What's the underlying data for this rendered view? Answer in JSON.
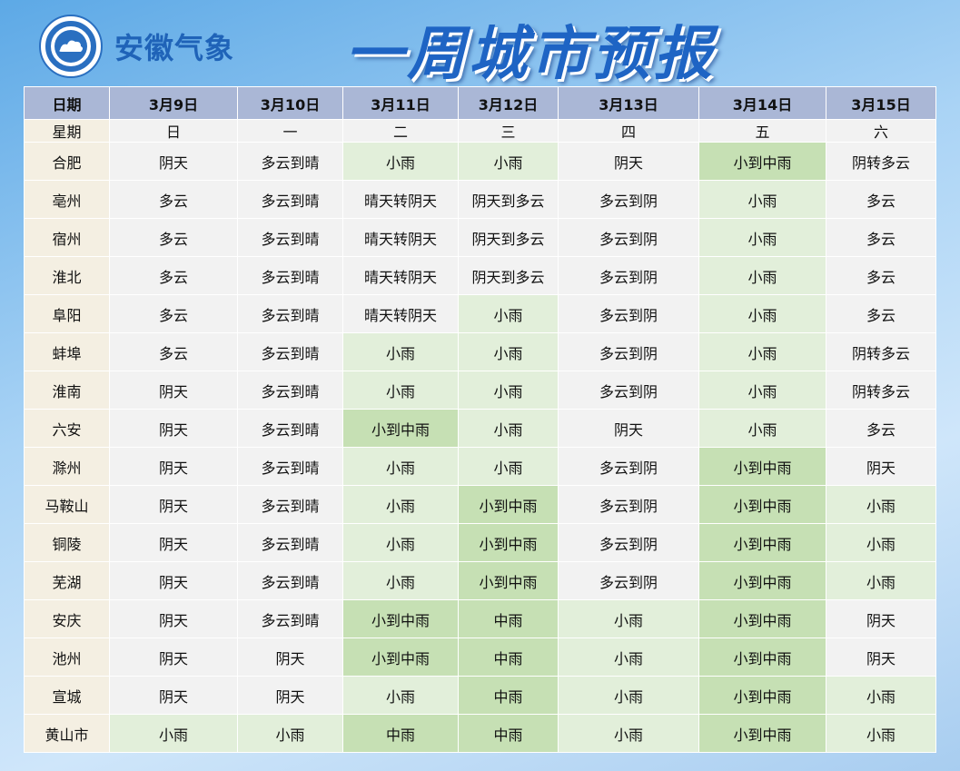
{
  "header": {
    "brand": "安徽气象",
    "title": "一周城市预报"
  },
  "table": {
    "header": [
      "日期",
      "3月9日",
      "3月10日",
      "3月11日",
      "3月12日",
      "3月13日",
      "3月14日",
      "3月15日"
    ],
    "weekday": [
      "星期",
      "日",
      "一",
      "二",
      "三",
      "四",
      "五",
      "六"
    ],
    "rows": [
      [
        "合肥",
        "阴天",
        "多云到晴",
        "小雨",
        "小雨",
        "阴天",
        "小到中雨",
        "阴转多云"
      ],
      [
        "亳州",
        "多云",
        "多云到晴",
        "晴天转阴天",
        "阴天到多云",
        "多云到阴",
        "小雨",
        "多云"
      ],
      [
        "宿州",
        "多云",
        "多云到晴",
        "晴天转阴天",
        "阴天到多云",
        "多云到阴",
        "小雨",
        "多云"
      ],
      [
        "淮北",
        "多云",
        "多云到晴",
        "晴天转阴天",
        "阴天到多云",
        "多云到阴",
        "小雨",
        "多云"
      ],
      [
        "阜阳",
        "多云",
        "多云到晴",
        "晴天转阴天",
        "小雨",
        "多云到阴",
        "小雨",
        "多云"
      ],
      [
        "蚌埠",
        "多云",
        "多云到晴",
        "小雨",
        "小雨",
        "多云到阴",
        "小雨",
        "阴转多云"
      ],
      [
        "淮南",
        "阴天",
        "多云到晴",
        "小雨",
        "小雨",
        "多云到阴",
        "小雨",
        "阴转多云"
      ],
      [
        "六安",
        "阴天",
        "多云到晴",
        "小到中雨",
        "小雨",
        "阴天",
        "小雨",
        "多云"
      ],
      [
        "滁州",
        "阴天",
        "多云到晴",
        "小雨",
        "小雨",
        "多云到阴",
        "小到中雨",
        "阴天"
      ],
      [
        "马鞍山",
        "阴天",
        "多云到晴",
        "小雨",
        "小到中雨",
        "多云到阴",
        "小到中雨",
        "小雨"
      ],
      [
        "铜陵",
        "阴天",
        "多云到晴",
        "小雨",
        "小到中雨",
        "多云到阴",
        "小到中雨",
        "小雨"
      ],
      [
        "芜湖",
        "阴天",
        "多云到晴",
        "小雨",
        "小到中雨",
        "多云到阴",
        "小到中雨",
        "小雨"
      ],
      [
        "安庆",
        "阴天",
        "多云到晴",
        "小到中雨",
        "中雨",
        "小雨",
        "小到中雨",
        "阴天"
      ],
      [
        "池州",
        "阴天",
        "阴天",
        "小到中雨",
        "中雨",
        "小雨",
        "小到中雨",
        "阴天"
      ],
      [
        "宣城",
        "阴天",
        "阴天",
        "小雨",
        "中雨",
        "小雨",
        "小到中雨",
        "小雨"
      ],
      [
        "黄山市",
        "小雨",
        "小雨",
        "中雨",
        "中雨",
        "小雨",
        "小到中雨",
        "小雨"
      ]
    ]
  },
  "cell_colors": {
    "小雨": "#e2efda",
    "小到中雨": "#c6e0b4",
    "中雨": "#c6e0b4"
  }
}
